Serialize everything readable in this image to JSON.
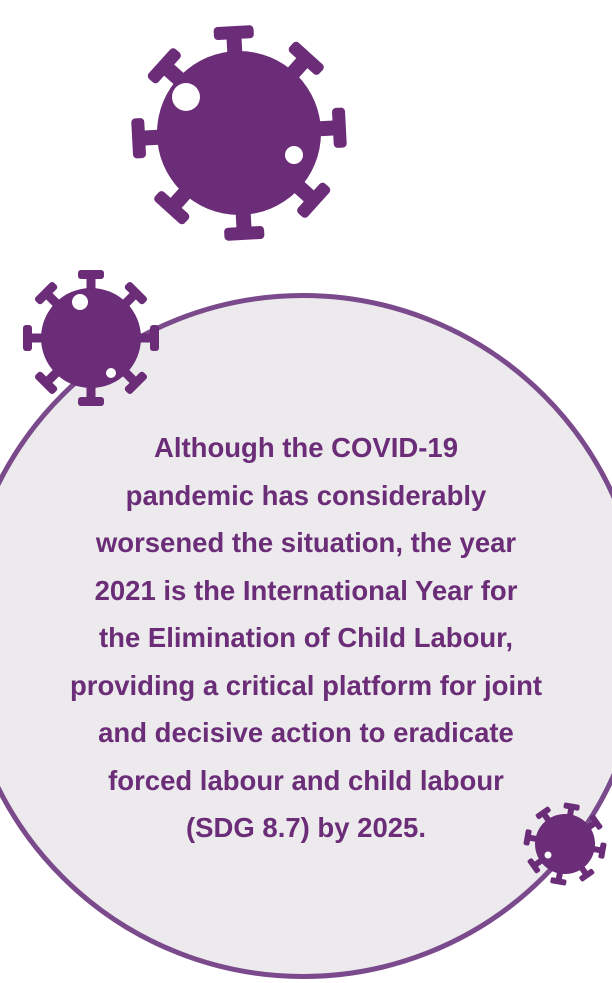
{
  "colors": {
    "accent": "#6b2c78",
    "circle_fill": "#eceaec",
    "circle_border": "#7b4a8c"
  },
  "decorations": {
    "icon": "virus-icon"
  },
  "quote": {
    "lines": [
      "Although the COVID-19",
      "pandemic has considerably",
      "worsened the situation, the year",
      "2021 is the International Year for",
      "the Elimination of Child Labour,",
      "providing a critical platform for joint",
      "and decisive action to eradicate",
      "forced labour and child labour",
      "(SDG 8.7) by 2025."
    ]
  }
}
